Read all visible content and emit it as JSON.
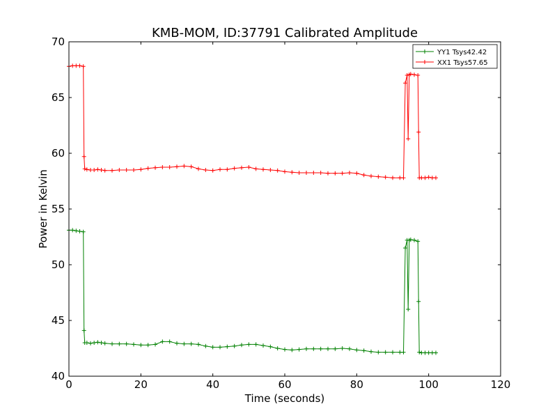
{
  "chart_data": {
    "type": "line",
    "title": "KMB-MOM, ID:37791 Calibrated Amplitude",
    "xlabel": "Time (seconds)",
    "ylabel": "Power in Kelvin",
    "xlim": [
      0,
      120
    ],
    "ylim": [
      40,
      70
    ],
    "xticks": [
      0,
      20,
      40,
      60,
      80,
      100,
      120
    ],
    "yticks": [
      40,
      45,
      50,
      55,
      60,
      65,
      70
    ],
    "grid": false,
    "legend_position": "top-right",
    "marker": "+",
    "series": [
      {
        "name": "YY1 Tsys42.42",
        "color": "#008000",
        "points": [
          [
            0,
            53.1
          ],
          [
            1,
            53.1
          ],
          [
            2,
            53.05
          ],
          [
            3,
            53.0
          ],
          [
            4,
            52.95
          ],
          [
            4.2,
            44.1
          ],
          [
            4.4,
            43.0
          ],
          [
            5,
            43.0
          ],
          [
            6,
            42.95
          ],
          [
            7,
            43.0
          ],
          [
            8,
            43.05
          ],
          [
            9,
            43.0
          ],
          [
            10,
            42.95
          ],
          [
            12,
            42.9
          ],
          [
            14,
            42.9
          ],
          [
            16,
            42.9
          ],
          [
            18,
            42.85
          ],
          [
            20,
            42.8
          ],
          [
            22,
            42.8
          ],
          [
            24,
            42.85
          ],
          [
            26,
            43.1
          ],
          [
            28,
            43.1
          ],
          [
            30,
            42.95
          ],
          [
            32,
            42.9
          ],
          [
            34,
            42.9
          ],
          [
            36,
            42.85
          ],
          [
            38,
            42.7
          ],
          [
            40,
            42.6
          ],
          [
            42,
            42.6
          ],
          [
            44,
            42.65
          ],
          [
            46,
            42.7
          ],
          [
            48,
            42.8
          ],
          [
            50,
            42.85
          ],
          [
            52,
            42.85
          ],
          [
            54,
            42.75
          ],
          [
            56,
            42.65
          ],
          [
            58,
            42.5
          ],
          [
            60,
            42.4
          ],
          [
            62,
            42.35
          ],
          [
            64,
            42.4
          ],
          [
            66,
            42.45
          ],
          [
            68,
            42.45
          ],
          [
            70,
            42.45
          ],
          [
            72,
            42.45
          ],
          [
            74,
            42.45
          ],
          [
            76,
            42.5
          ],
          [
            78,
            42.45
          ],
          [
            80,
            42.35
          ],
          [
            82,
            42.3
          ],
          [
            84,
            42.2
          ],
          [
            86,
            42.15
          ],
          [
            88,
            42.15
          ],
          [
            90,
            42.15
          ],
          [
            92,
            42.15
          ],
          [
            93,
            42.15
          ],
          [
            93.5,
            51.5
          ],
          [
            94,
            52.2
          ],
          [
            94.3,
            46.0
          ],
          [
            94.6,
            52.2
          ],
          [
            95,
            52.25
          ],
          [
            96,
            52.2
          ],
          [
            97,
            52.1
          ],
          [
            97.2,
            46.7
          ],
          [
            97.4,
            42.15
          ],
          [
            98,
            42.1
          ],
          [
            99,
            42.1
          ],
          [
            100,
            42.1
          ],
          [
            101,
            42.1
          ],
          [
            102,
            42.1
          ]
        ]
      },
      {
        "name": "XX1 Tsys57.65",
        "color": "#ff0000",
        "points": [
          [
            0,
            67.8
          ],
          [
            1,
            67.85
          ],
          [
            2,
            67.85
          ],
          [
            3,
            67.85
          ],
          [
            4,
            67.8
          ],
          [
            4.2,
            59.7
          ],
          [
            4.4,
            58.6
          ],
          [
            5,
            58.55
          ],
          [
            6,
            58.5
          ],
          [
            7,
            58.5
          ],
          [
            8,
            58.55
          ],
          [
            9,
            58.5
          ],
          [
            10,
            58.45
          ],
          [
            12,
            58.45
          ],
          [
            14,
            58.5
          ],
          [
            16,
            58.5
          ],
          [
            18,
            58.5
          ],
          [
            20,
            58.55
          ],
          [
            22,
            58.65
          ],
          [
            24,
            58.7
          ],
          [
            26,
            58.75
          ],
          [
            28,
            58.75
          ],
          [
            30,
            58.8
          ],
          [
            32,
            58.85
          ],
          [
            34,
            58.8
          ],
          [
            36,
            58.6
          ],
          [
            38,
            58.5
          ],
          [
            40,
            58.45
          ],
          [
            42,
            58.55
          ],
          [
            44,
            58.55
          ],
          [
            46,
            58.65
          ],
          [
            48,
            58.7
          ],
          [
            50,
            58.75
          ],
          [
            52,
            58.6
          ],
          [
            54,
            58.55
          ],
          [
            56,
            58.5
          ],
          [
            58,
            58.45
          ],
          [
            60,
            58.35
          ],
          [
            62,
            58.3
          ],
          [
            64,
            58.25
          ],
          [
            66,
            58.25
          ],
          [
            68,
            58.25
          ],
          [
            70,
            58.25
          ],
          [
            72,
            58.2
          ],
          [
            74,
            58.2
          ],
          [
            76,
            58.2
          ],
          [
            78,
            58.25
          ],
          [
            80,
            58.2
          ],
          [
            82,
            58.05
          ],
          [
            84,
            57.95
          ],
          [
            86,
            57.9
          ],
          [
            88,
            57.85
          ],
          [
            90,
            57.8
          ],
          [
            92,
            57.8
          ],
          [
            93,
            57.8
          ],
          [
            93.5,
            66.3
          ],
          [
            94,
            67.0
          ],
          [
            94.3,
            61.3
          ],
          [
            94.6,
            67.05
          ],
          [
            95,
            67.1
          ],
          [
            96,
            67.05
          ],
          [
            97,
            67.0
          ],
          [
            97.2,
            61.9
          ],
          [
            97.4,
            57.8
          ],
          [
            98,
            57.8
          ],
          [
            99,
            57.8
          ],
          [
            100,
            57.85
          ],
          [
            101,
            57.8
          ],
          [
            102,
            57.8
          ]
        ]
      }
    ]
  }
}
